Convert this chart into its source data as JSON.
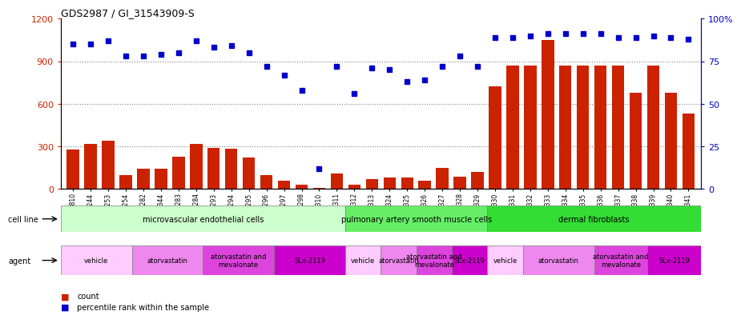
{
  "title": "GDS2987 / GI_31543909-S",
  "samples": [
    "GSM214810",
    "GSM215244",
    "GSM215253",
    "GSM215254",
    "GSM215282",
    "GSM215344",
    "GSM215283",
    "GSM215284",
    "GSM215293",
    "GSM215294",
    "GSM215295",
    "GSM215296",
    "GSM215297",
    "GSM215298",
    "GSM215310",
    "GSM215311",
    "GSM215312",
    "GSM215313",
    "GSM215324",
    "GSM215325",
    "GSM215326",
    "GSM215327",
    "GSM215328",
    "GSM215329",
    "GSM215330",
    "GSM215331",
    "GSM215332",
    "GSM215333",
    "GSM215334",
    "GSM215335",
    "GSM215336",
    "GSM215337",
    "GSM215338",
    "GSM215339",
    "GSM215340",
    "GSM215341"
  ],
  "counts": [
    280,
    320,
    340,
    100,
    140,
    140,
    230,
    320,
    290,
    285,
    220,
    100,
    60,
    30,
    10,
    110,
    30,
    70,
    80,
    80,
    60,
    150,
    85,
    120,
    720,
    870,
    870,
    1050,
    870,
    870,
    870,
    870,
    680,
    870,
    680,
    530
  ],
  "percentile_pct": [
    85,
    85,
    87,
    78,
    78,
    79,
    80,
    87,
    83,
    84,
    80,
    72,
    67,
    58,
    12,
    72,
    56,
    71,
    70,
    63,
    64,
    72,
    78,
    72,
    89,
    89,
    90,
    91,
    91,
    91,
    91,
    89,
    89,
    90,
    89,
    88
  ],
  "ylim_left": [
    0,
    1200
  ],
  "ylim_right": [
    0,
    100
  ],
  "yticks_left": [
    0,
    300,
    600,
    900,
    1200
  ],
  "yticks_right": [
    0,
    25,
    50,
    75,
    100
  ],
  "bar_color": "#cc2200",
  "dot_color": "#0000cc",
  "cell_line_groups": [
    {
      "label": "microvascular endothelial cells",
      "start": 0,
      "end": 16,
      "color": "#ccffcc"
    },
    {
      "label": "pulmonary artery smooth muscle cells",
      "start": 16,
      "end": 24,
      "color": "#66ee66"
    },
    {
      "label": "dermal fibroblasts",
      "start": 24,
      "end": 36,
      "color": "#33dd33"
    }
  ],
  "agent_groups": [
    {
      "label": "vehicle",
      "start": 0,
      "end": 4,
      "color": "#ffccff"
    },
    {
      "label": "atorvastatin",
      "start": 4,
      "end": 8,
      "color": "#ee88ee"
    },
    {
      "label": "atorvastatin and\nmevalonate",
      "start": 8,
      "end": 12,
      "color": "#dd44dd"
    },
    {
      "label": "SLx-2119",
      "start": 12,
      "end": 16,
      "color": "#cc00cc"
    },
    {
      "label": "vehicle",
      "start": 16,
      "end": 18,
      "color": "#ffccff"
    },
    {
      "label": "atorvastatin",
      "start": 18,
      "end": 20,
      "color": "#ee88ee"
    },
    {
      "label": "atorvastatin and\nmevalonate",
      "start": 20,
      "end": 22,
      "color": "#dd44dd"
    },
    {
      "label": "SLx-2119",
      "start": 22,
      "end": 24,
      "color": "#cc00cc"
    },
    {
      "label": "vehicle",
      "start": 24,
      "end": 26,
      "color": "#ffccff"
    },
    {
      "label": "atorvastatin",
      "start": 26,
      "end": 30,
      "color": "#ee88ee"
    },
    {
      "label": "atorvastatin and\nmevalonate",
      "start": 30,
      "end": 33,
      "color": "#dd44dd"
    },
    {
      "label": "SLx-2119",
      "start": 33,
      "end": 36,
      "color": "#cc00cc"
    }
  ]
}
